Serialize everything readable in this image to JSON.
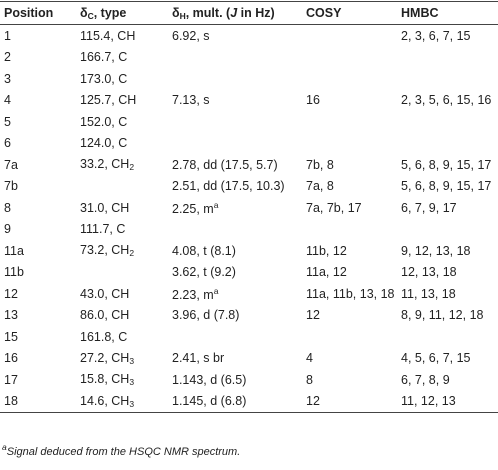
{
  "table": {
    "headers": [
      "Position",
      {
        "text": "δ",
        "sub": "C",
        "after": ", type"
      },
      {
        "text": "δ",
        "sub": "H",
        "after": ", mult. (",
        "italic": "J",
        "end": " in Hz)"
      },
      "COSY",
      "HMBC"
    ],
    "rows": [
      [
        "1",
        "115.4, CH",
        "6.92, s",
        null,
        "2, 3, 6, 7, 15"
      ],
      [
        "2",
        "166.7, C",
        null,
        null,
        null
      ],
      [
        "3",
        "173.0, C",
        null,
        null,
        null
      ],
      [
        "4",
        "125.7, CH",
        "7.13, s",
        "16",
        "2, 3, 5, 6, 15, 16"
      ],
      [
        "5",
        "152.0, C",
        null,
        null,
        null
      ],
      [
        "6",
        "124.0, C",
        null,
        null,
        null
      ],
      [
        "7a",
        {
          "text": "33.2, CH",
          "sub": "2"
        },
        "2.78, dd (17.5, 5.7)",
        "7b, 8",
        "5, 6, 8, 9, 15, 17"
      ],
      [
        "7b",
        null,
        "2.51, dd (17.5, 10.3)",
        "7a, 8",
        "5, 6, 8, 9, 15, 17"
      ],
      [
        "8",
        "31.0, CH",
        {
          "text": "2.25, m",
          "sup": "a"
        },
        "7a, 7b, 17",
        "6, 7, 9, 17"
      ],
      [
        "9",
        "111.7, C",
        null,
        null,
        null
      ],
      [
        "11a",
        {
          "text": "73.2, CH",
          "sub": "2"
        },
        "4.08, t (8.1)",
        "11b, 12",
        "9, 12, 13, 18"
      ],
      [
        "11b",
        null,
        "3.62, t (9.2)",
        "11a, 12",
        "12, 13, 18"
      ],
      [
        "12",
        "43.0, CH",
        {
          "text": "2.23, m",
          "sup": "a"
        },
        "11a, 11b, 13, 18",
        "11, 13, 18"
      ],
      [
        "13",
        "86.0, CH",
        "3.96, d (7.8)",
        "12",
        "8, 9, 11, 12, 18"
      ],
      [
        "15",
        "161.8, C",
        null,
        null,
        null
      ],
      [
        "16",
        {
          "text": "27.2, CH",
          "sub": "3"
        },
        "2.41, s br",
        "4",
        "4, 5, 6, 7, 15"
      ],
      [
        "17",
        {
          "text": "15.8, CH",
          "sub": "3"
        },
        "1.143, d (6.5)",
        "8",
        "6, 7, 8, 9"
      ],
      [
        "18",
        {
          "text": "14.6, CH",
          "sub": "3"
        },
        "1.145, d (6.8)",
        "12",
        "11, 12, 13"
      ]
    ]
  },
  "footnote": {
    "sup": "a",
    "text": "Signal deduced from the HSQC NMR spectrum."
  }
}
